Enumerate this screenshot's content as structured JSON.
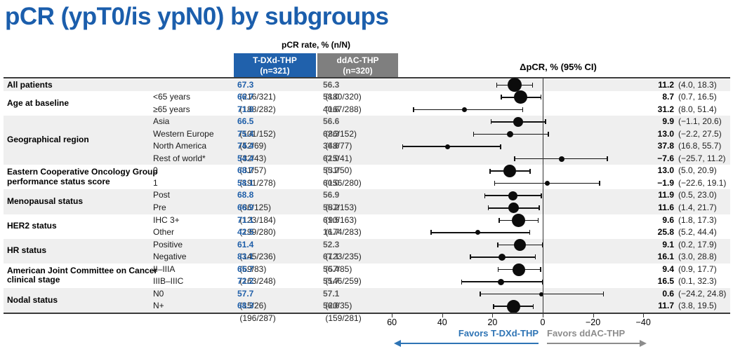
{
  "title": "pCR (ypT0/is ypN0) by subgroups",
  "header": {
    "pcr_rate": "pCR rate, % (n/N)",
    "arm1_name": "T-DXd-THP",
    "arm1_n": "(n=321)",
    "arm2_name": "ddAC-THP",
    "arm2_n": "(n=320)",
    "delta_header": "ΔpCR, % (95% CI)"
  },
  "footer": {
    "favors_left": "Favors T-DXd-THP",
    "favors_right": "Favors ddAC-THP"
  },
  "colors": {
    "title-blue": "#1B5EAC",
    "arm1-blue": "#2061AC",
    "arm2-gray": "#7F7F7F",
    "value-blue": "#1F5FA9",
    "value-gray": "#595959",
    "band-gray": "#EFEFEF",
    "favors-blue": "#2E74B5",
    "favors-gray": "#8C8C8C"
  },
  "chart_data": {
    "type": "forest",
    "x_axis_label": "ΔpCR, % (95% CI)",
    "x_range": [
      60,
      -40
    ],
    "x_reversed": true,
    "reference_line": 0,
    "x_ticks": [
      {
        "value": 60,
        "label": "60"
      },
      {
        "value": 40,
        "label": "40"
      },
      {
        "value": 20,
        "label": "20"
      },
      {
        "value": 0,
        "label": "0"
      },
      {
        "value": -20,
        "label": "−20"
      },
      {
        "value": -40,
        "label": "−40"
      }
    ],
    "groups": [
      {
        "label": "All patients",
        "band": "gray",
        "rows": [
          {
            "sublabel": "",
            "arm1_pct": "67.3",
            "arm1_nn": "(216/321)",
            "arm2_pct": "56.3",
            "arm2_nn": "(180/320)",
            "delta": 11.2,
            "ci_low": 4.0,
            "ci_high": 18.3,
            "delta_text": "11.2",
            "ci_text": "(4.0, 18.3)",
            "n_total": 641
          }
        ]
      },
      {
        "label": "Age at baseline",
        "band": "white",
        "rows": [
          {
            "sublabel": "<65 years",
            "arm1_pct": "66.7",
            "arm1_nn": "(188/282)",
            "arm2_pct": "58.0",
            "arm2_nn": "(167/288)",
            "delta": 8.7,
            "ci_low": 0.7,
            "ci_high": 16.5,
            "delta_text": "8.7",
            "ci_text": "(0.7, 16.5)",
            "n_total": 570
          },
          {
            "sublabel": "≥65 years",
            "arm1_pct": "71.8",
            "arm1_nn": "(28/39)",
            "arm2_pct": "40.6",
            "arm2_nn": "(13/32)",
            "delta": 31.2,
            "ci_low": 8.0,
            "ci_high": 51.4,
            "delta_text": "31.2",
            "ci_text": "(8.0, 51.4)",
            "n_total": 71
          }
        ]
      },
      {
        "label": "Geographical region",
        "band": "gray",
        "rows": [
          {
            "sublabel": "Asia",
            "arm1_pct": "66.5",
            "arm1_nn": "(101/152)",
            "arm2_pct": "56.6",
            "arm2_nn": "(86/152)",
            "delta": 9.9,
            "ci_low": -1.1,
            "ci_high": 20.6,
            "delta_text": "9.9",
            "ci_text": "(−1.1, 20.6)",
            "n_total": 304
          },
          {
            "sublabel": "Western Europe",
            "arm1_pct": "75.4",
            "arm1_nn": "(52/69)",
            "arm2_pct": "62.3",
            "arm2_nn": "(48/77)",
            "delta": 13.0,
            "ci_low": -2.2,
            "ci_high": 27.5,
            "delta_text": "13.0",
            "ci_text": "(−2.2, 27.5)",
            "n_total": 146
          },
          {
            "sublabel": "North America",
            "arm1_pct": "74.4",
            "arm1_nn": "(32/43)",
            "arm2_pct": "36.6",
            "arm2_nn": "(15/41)",
            "delta": 37.8,
            "ci_low": 16.8,
            "ci_high": 55.7,
            "delta_text": "37.8",
            "ci_text": "(16.8, 55.7)",
            "n_total": 84
          },
          {
            "sublabel": "Rest of world*",
            "arm1_pct": "54.4",
            "arm1_nn": "(31/57)",
            "arm2_pct": "62.0",
            "arm2_nn": "(31/50)",
            "delta": -7.6,
            "ci_low": -25.7,
            "ci_high": 11.2,
            "delta_text": "−7.6",
            "ci_text": "(−25.7, 11.2)",
            "n_total": 107
          }
        ]
      },
      {
        "label": "Eastern Cooperative Oncology Group performance status score",
        "band": "white",
        "rows": [
          {
            "sublabel": "0",
            "arm1_pct": "68.7",
            "arm1_nn": "(191/278)",
            "arm2_pct": "55.7",
            "arm2_nn": "(156/280)",
            "delta": 13.0,
            "ci_low": 5.0,
            "ci_high": 20.9,
            "delta_text": "13.0",
            "ci_text": "(5.0, 20.9)",
            "n_total": 558
          },
          {
            "sublabel": "1",
            "arm1_pct": "58.1",
            "arm1_nn": "(25/43)",
            "arm2_pct": "60.0",
            "arm2_nn": "(24/40)",
            "delta": -1.9,
            "ci_low": -22.6,
            "ci_high": 19.1,
            "delta_text": "−1.9",
            "ci_text": "(−22.6, 19.1)",
            "n_total": 83
          }
        ]
      },
      {
        "label": "Menopausal status",
        "band": "gray",
        "rows": [
          {
            "sublabel": "Post",
            "arm1_pct": "68.8",
            "arm1_nn": "(86/125)",
            "arm2_pct": "56.9",
            "arm2_nn": "(87/153)",
            "delta": 11.9,
            "ci_low": 0.5,
            "ci_high": 23.0,
            "delta_text": "11.9",
            "ci_text": "(0.5, 23.0)",
            "n_total": 278
          },
          {
            "sublabel": "Pre",
            "arm1_pct": "66.9",
            "arm1_nn": "(123/184)",
            "arm2_pct": "55.2",
            "arm2_nn": "(90/163)",
            "delta": 11.6,
            "ci_low": 1.4,
            "ci_high": 21.7,
            "delta_text": "11.6",
            "ci_text": "(1.4, 21.7)",
            "n_total": 347
          }
        ]
      },
      {
        "label": "HER2 status",
        "band": "white",
        "rows": [
          {
            "sublabel": "IHC 3+",
            "arm1_pct": "71.1",
            "arm1_nn": "(199/280)",
            "arm2_pct": "61.5",
            "arm2_nn": "(174/283)",
            "delta": 9.6,
            "ci_low": 1.8,
            "ci_high": 17.3,
            "delta_text": "9.6",
            "ci_text": "(1.8, 17.3)",
            "n_total": 563
          },
          {
            "sublabel": "Other",
            "arm1_pct": "42.5",
            "arm1_nn": "(17/40)",
            "arm2_pct": "16.7",
            "arm2_nn": "(6/36)",
            "delta": 25.8,
            "ci_low": 5.2,
            "ci_high": 44.4,
            "delta_text": "25.8",
            "ci_text": "(5.2, 44.4)",
            "n_total": 76
          }
        ]
      },
      {
        "label": "HR status",
        "band": "gray",
        "rows": [
          {
            "sublabel": "Positive",
            "arm1_pct": "61.4",
            "arm1_nn": "(145/236)",
            "arm2_pct": "52.3",
            "arm2_nn": "(123/235)",
            "delta": 9.1,
            "ci_low": 0.2,
            "ci_high": 17.9,
            "delta_text": "9.1",
            "ci_text": "(0.2, 17.9)",
            "n_total": 471
          },
          {
            "sublabel": "Negative",
            "arm1_pct": "83.1",
            "arm1_nn": "(69/83)",
            "arm2_pct": "67.1",
            "arm2_nn": "(57/85)",
            "delta": 16.1,
            "ci_low": 3.0,
            "ci_high": 28.8,
            "delta_text": "16.1",
            "ci_text": "(3.0, 28.8)",
            "n_total": 168
          }
        ]
      },
      {
        "label": "American Joint Committee on Cancer clinical stage",
        "band": "white",
        "rows": [
          {
            "sublabel": "II–IIIA",
            "arm1_pct": "65.7",
            "arm1_nn": "(163/248)",
            "arm2_pct": "56.4",
            "arm2_nn": "(146/259)",
            "delta": 9.4,
            "ci_low": 0.9,
            "ci_high": 17.7,
            "delta_text": "9.4",
            "ci_text": "(0.9, 17.7)",
            "n_total": 507
          },
          {
            "sublabel": "IIIB–IIIC",
            "arm1_pct": "72.2",
            "arm1_nn": "(52/72)",
            "arm2_pct": "55.7",
            "arm2_nn": "(34/61)",
            "delta": 16.5,
            "ci_low": 0.1,
            "ci_high": 32.3,
            "delta_text": "16.5",
            "ci_text": "(0.1, 32.3)",
            "n_total": 133
          }
        ]
      },
      {
        "label": "Nodal status",
        "band": "gray",
        "rows": [
          {
            "sublabel": "N0",
            "arm1_pct": "57.7",
            "arm1_nn": "(15/26)",
            "arm2_pct": "57.1",
            "arm2_nn": "(20/35)",
            "delta": 0.6,
            "ci_low": -24.2,
            "ci_high": 24.8,
            "delta_text": "0.6",
            "ci_text": "(−24.2, 24.8)",
            "n_total": 61
          },
          {
            "sublabel": "N+",
            "arm1_pct": "68.3",
            "arm1_nn": "(196/287)",
            "arm2_pct": "56.6",
            "arm2_nn": "(159/281)",
            "delta": 11.7,
            "ci_low": 3.8,
            "ci_high": 19.5,
            "delta_text": "11.7",
            "ci_text": "(3.8, 19.5)",
            "n_total": 568
          }
        ]
      }
    ]
  }
}
